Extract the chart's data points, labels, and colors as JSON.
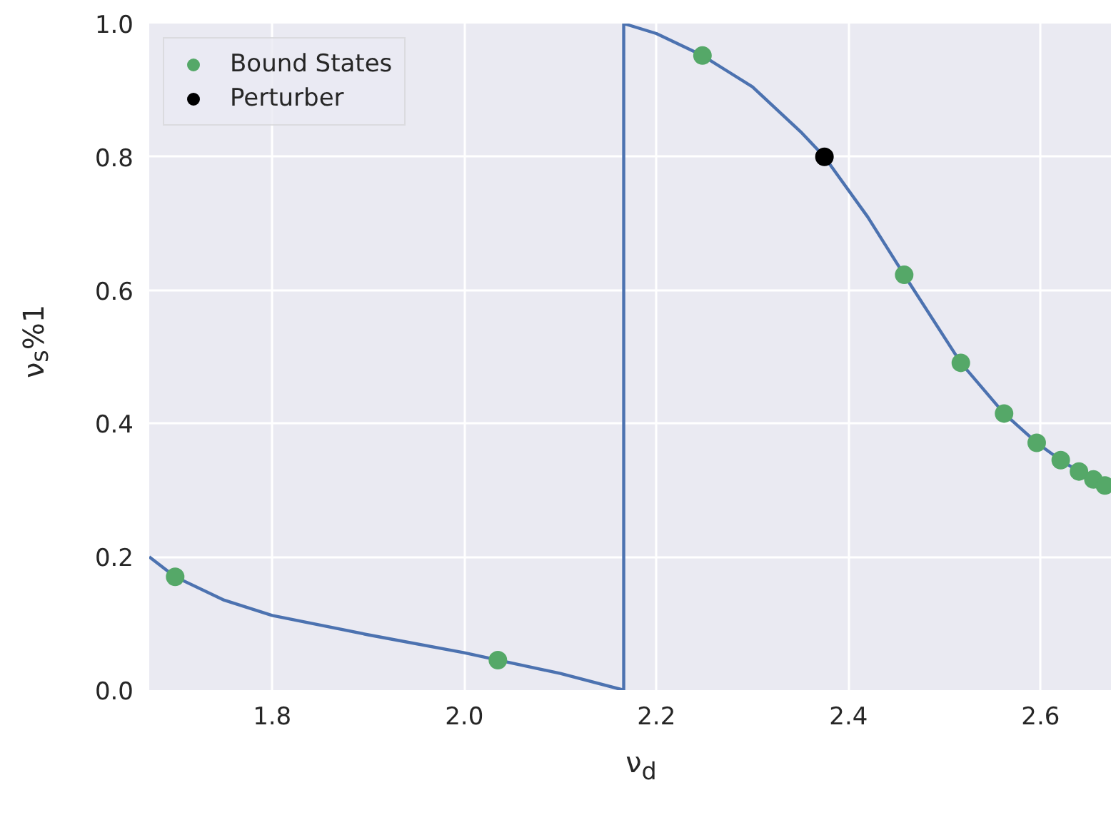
{
  "chart_data": {
    "type": "scatter",
    "xlabel": "ν$_{d}$",
    "ylabel": "ν$_{s}$%1",
    "xlim": [
      1.672,
      2.683
    ],
    "ylim": [
      0,
      1
    ],
    "xticks": [
      1.8,
      {
        "value": 2,
        "label": "2.0"
      },
      2.2,
      2.4,
      2.6
    ],
    "yticks": [
      {
        "value": 0,
        "label": "0.0"
      },
      0.2,
      0.4,
      0.6,
      0.8,
      {
        "value": 1,
        "label": "1.0"
      }
    ],
    "grid": true,
    "legend": "top left",
    "marker": "circle",
    "series": [
      {
        "type": "line",
        "color": "#4c72b0",
        "line_style": "solid",
        "marker": "none",
        "x": [
          1.672,
          1.699,
          1.75,
          1.8,
          1.9,
          2.0,
          2.035,
          2.1,
          2.166,
          2.166,
          2.2,
          2.248,
          2.3,
          2.35,
          2.375,
          2.42,
          2.458,
          2.517,
          2.562,
          2.596,
          2.621,
          2.64,
          2.677
        ],
        "values": [
          0.2,
          0.17,
          0.135,
          0.112,
          0.083,
          0.056,
          0.045,
          0.025,
          0.0,
          1.0,
          0.985,
          0.952,
          0.905,
          0.838,
          0.8,
          0.71,
          0.623,
          0.491,
          0.415,
          0.371,
          0.345,
          0.328,
          0.299
        ]
      },
      {
        "name": "Bound States",
        "color": "#55a868",
        "x": [
          1.699,
          2.035,
          2.248,
          2.458,
          2.517,
          2.562,
          2.596,
          2.621,
          2.64,
          2.655,
          2.667
        ],
        "values": [
          0.17,
          0.045,
          0.952,
          0.623,
          0.491,
          0.415,
          0.371,
          0.345,
          0.328,
          0.316,
          0.307
        ]
      },
      {
        "name": "Perturber",
        "color": "#000000",
        "x": [
          2.375
        ],
        "values": [
          0.8
        ]
      }
    ]
  }
}
